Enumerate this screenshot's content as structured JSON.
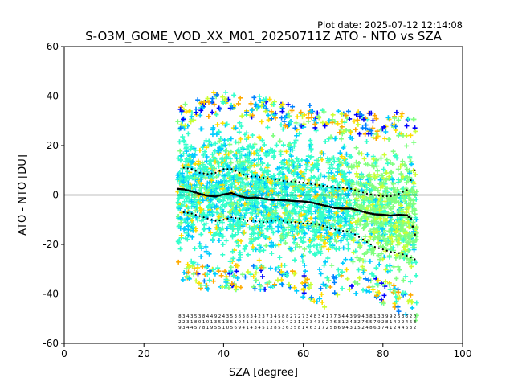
{
  "figure": {
    "plot_date": "Plot date: 2025-07-12 12:14:08",
    "title": "S-O3M_GOME_VOD_XX_M01_20250711Z ATO - NTO vs SZA"
  },
  "chart_data": {
    "type": "scatter",
    "title": "S-O3M_GOME_VOD_XX_M01_20250711Z ATO - NTO vs SZA",
    "xlabel": "SZA [degree]",
    "ylabel": "ATO - NTO [DU]",
    "xlim": [
      0,
      100
    ],
    "ylim": [
      -60,
      60
    ],
    "xticks": [
      0,
      20,
      40,
      60,
      80,
      100
    ],
    "yticks": [
      -60,
      -40,
      -20,
      0,
      20,
      40,
      60
    ],
    "grid": false,
    "legend": "none",
    "reference_line": {
      "y": 0,
      "color": "#000000"
    },
    "scatter_envelope": {
      "description": "dense cloud of + markers",
      "colors": [
        "#0000ff",
        "#0080ff",
        "#00ccff",
        "#33ffcc",
        "#80ff80",
        "#ccff33",
        "#ffdd00",
        "#ffaa00"
      ],
      "x": [
        28.5,
        30,
        35,
        40,
        45,
        50,
        55,
        60,
        65,
        70,
        75,
        80,
        85,
        88.5
      ],
      "upper": [
        30,
        33,
        37,
        38,
        37,
        36,
        33,
        32,
        33,
        30,
        30,
        28,
        30,
        28
      ],
      "lower": [
        -28,
        -32,
        -34,
        -35,
        -34,
        -35,
        -34,
        -38,
        -42,
        -36,
        -36,
        -40,
        -44,
        -48
      ]
    },
    "series": [
      {
        "stat": "mean",
        "x": [
          28.5,
          30,
          32,
          34,
          36,
          38,
          40,
          42,
          44,
          46,
          48,
          50,
          52,
          54,
          56,
          58,
          60,
          62,
          64,
          66,
          68,
          70,
          72,
          74,
          76,
          78,
          80,
          82,
          84,
          86,
          87,
          88
        ],
        "y": [
          2.5,
          2.3,
          1.5,
          0.5,
          -0.3,
          -0.6,
          0.2,
          0.8,
          -0.5,
          -1.2,
          -1.0,
          -1.5,
          -2.0,
          -2.0,
          -2.2,
          -2.5,
          -2.6,
          -3.0,
          -3.8,
          -4.5,
          -5.3,
          -5.5,
          -5.5,
          -6.3,
          -7.2,
          -7.8,
          -8.0,
          -8.3,
          -8.0,
          -8.2,
          -9.5,
          -16
        ]
      },
      {
        "stat": "mean_plus_std",
        "x": [
          30,
          32,
          34,
          36,
          38,
          40,
          42,
          44,
          46,
          48,
          50,
          52,
          54,
          56,
          58,
          60,
          62,
          64,
          66,
          68,
          70,
          72,
          74,
          76,
          78,
          80,
          82,
          84,
          86,
          88
        ],
        "y": [
          11,
          10.5,
          9,
          8.5,
          9,
          10.5,
          10.5,
          9,
          7.5,
          7.5,
          7,
          6.5,
          6,
          5.5,
          5.5,
          5,
          4.5,
          4,
          3.5,
          3,
          3,
          2.5,
          1.5,
          0.5,
          0,
          -0.5,
          -0.5,
          0.5,
          2,
          10
        ]
      },
      {
        "stat": "mean_minus_std",
        "x": [
          30,
          32,
          34,
          36,
          38,
          40,
          42,
          44,
          46,
          48,
          50,
          52,
          54,
          56,
          58,
          60,
          62,
          64,
          66,
          68,
          70,
          72,
          74,
          76,
          78,
          80,
          82,
          84,
          86,
          88
        ],
        "y": [
          -7,
          -7.5,
          -8.5,
          -9.5,
          -10.5,
          -10,
          -9,
          -9.5,
          -10.5,
          -10.5,
          -11,
          -10.5,
          -10,
          -11,
          -11,
          -11.5,
          -11.5,
          -12,
          -13,
          -14,
          -14.5,
          -15,
          -17,
          -19,
          -21,
          -22,
          -23,
          -23.5,
          -24.5,
          -26
        ]
      }
    ],
    "annotations": {
      "x": [
        29,
        30,
        31,
        32,
        33,
        34,
        35,
        36,
        37,
        38,
        39,
        40,
        41,
        42,
        43,
        44,
        45,
        46,
        47,
        48,
        49,
        50,
        51,
        52,
        53,
        54,
        55,
        56,
        57,
        58,
        59,
        60,
        61,
        62,
        63,
        64,
        65,
        66,
        67,
        68,
        69,
        70,
        71,
        72,
        73,
        74,
        75,
        76,
        77,
        78,
        79,
        80,
        81,
        82,
        83,
        84,
        85,
        86,
        87,
        88
      ],
      "row1": [
        "8",
        "3",
        "4",
        "3",
        "5",
        "3",
        "8",
        "4",
        "4",
        "9",
        "2",
        "4",
        "3",
        "5",
        "3",
        "8",
        "3",
        "8",
        "3",
        "4",
        "2",
        "3",
        "7",
        "3",
        "4",
        "5",
        "8",
        "8",
        "2",
        "7",
        "2",
        "7",
        "3",
        "4",
        "8",
        "3",
        "4",
        "1",
        "7",
        "7",
        "3",
        "4",
        "4",
        "3",
        "9",
        "9",
        "4",
        "3",
        "8",
        "1",
        "3",
        "3",
        "9",
        "9",
        "2",
        "6",
        "3",
        "3",
        "2",
        "0"
      ],
      "row2": [
        "2",
        "2",
        "3",
        "1",
        "8",
        "0",
        "1",
        "0",
        "1",
        "3",
        "5",
        "1",
        "3",
        "5",
        "1",
        "0",
        "4",
        "1",
        "5",
        "3",
        "1",
        "5",
        "1",
        "2",
        "1",
        "3",
        "9",
        "4",
        "2",
        "3",
        "1",
        "2",
        "2",
        "3",
        "4",
        "3",
        "0",
        "2",
        "7",
        "6",
        "3",
        "1",
        "2",
        "4",
        "3",
        "2",
        "7",
        "6",
        "5",
        "7",
        "9",
        "2",
        "8",
        "1",
        "4",
        "0",
        "2",
        "4",
        "6",
        "3"
      ],
      "row3": [
        "9",
        "3",
        "4",
        "4",
        "5",
        "7",
        "8",
        "1",
        "9",
        "5",
        "5",
        "1",
        "0",
        "5",
        "6",
        "9",
        "4",
        "1",
        "4",
        "3",
        "4",
        "5",
        "1",
        "2",
        "8",
        "5",
        "3",
        "6",
        "3",
        "5",
        "8",
        "1",
        "4",
        "6",
        "3",
        "1",
        "7",
        "2",
        "5",
        "8",
        "6",
        "9",
        "4",
        "3",
        "1",
        "5",
        "2",
        "4",
        "8",
        "6",
        "3",
        "7",
        "4",
        "1",
        "2",
        "4",
        "4",
        "6",
        "3",
        "2"
      ]
    }
  }
}
